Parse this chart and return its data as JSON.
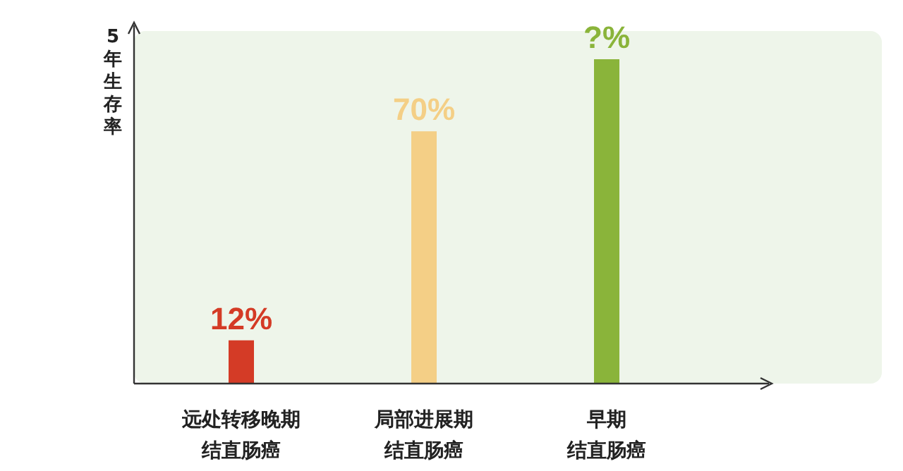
{
  "chart_data": {
    "type": "bar",
    "ylabel": "5年生存率",
    "categories": [
      "远处转移晚期结直肠癌",
      "局部进展期结直肠癌",
      "早期结直肠癌"
    ],
    "values": [
      12,
      70,
      90
    ],
    "value_labels": [
      "12%",
      "70%",
      "?%"
    ],
    "colors": [
      "#d43b26",
      "#f4cf86",
      "#8ab43a"
    ]
  }
}
